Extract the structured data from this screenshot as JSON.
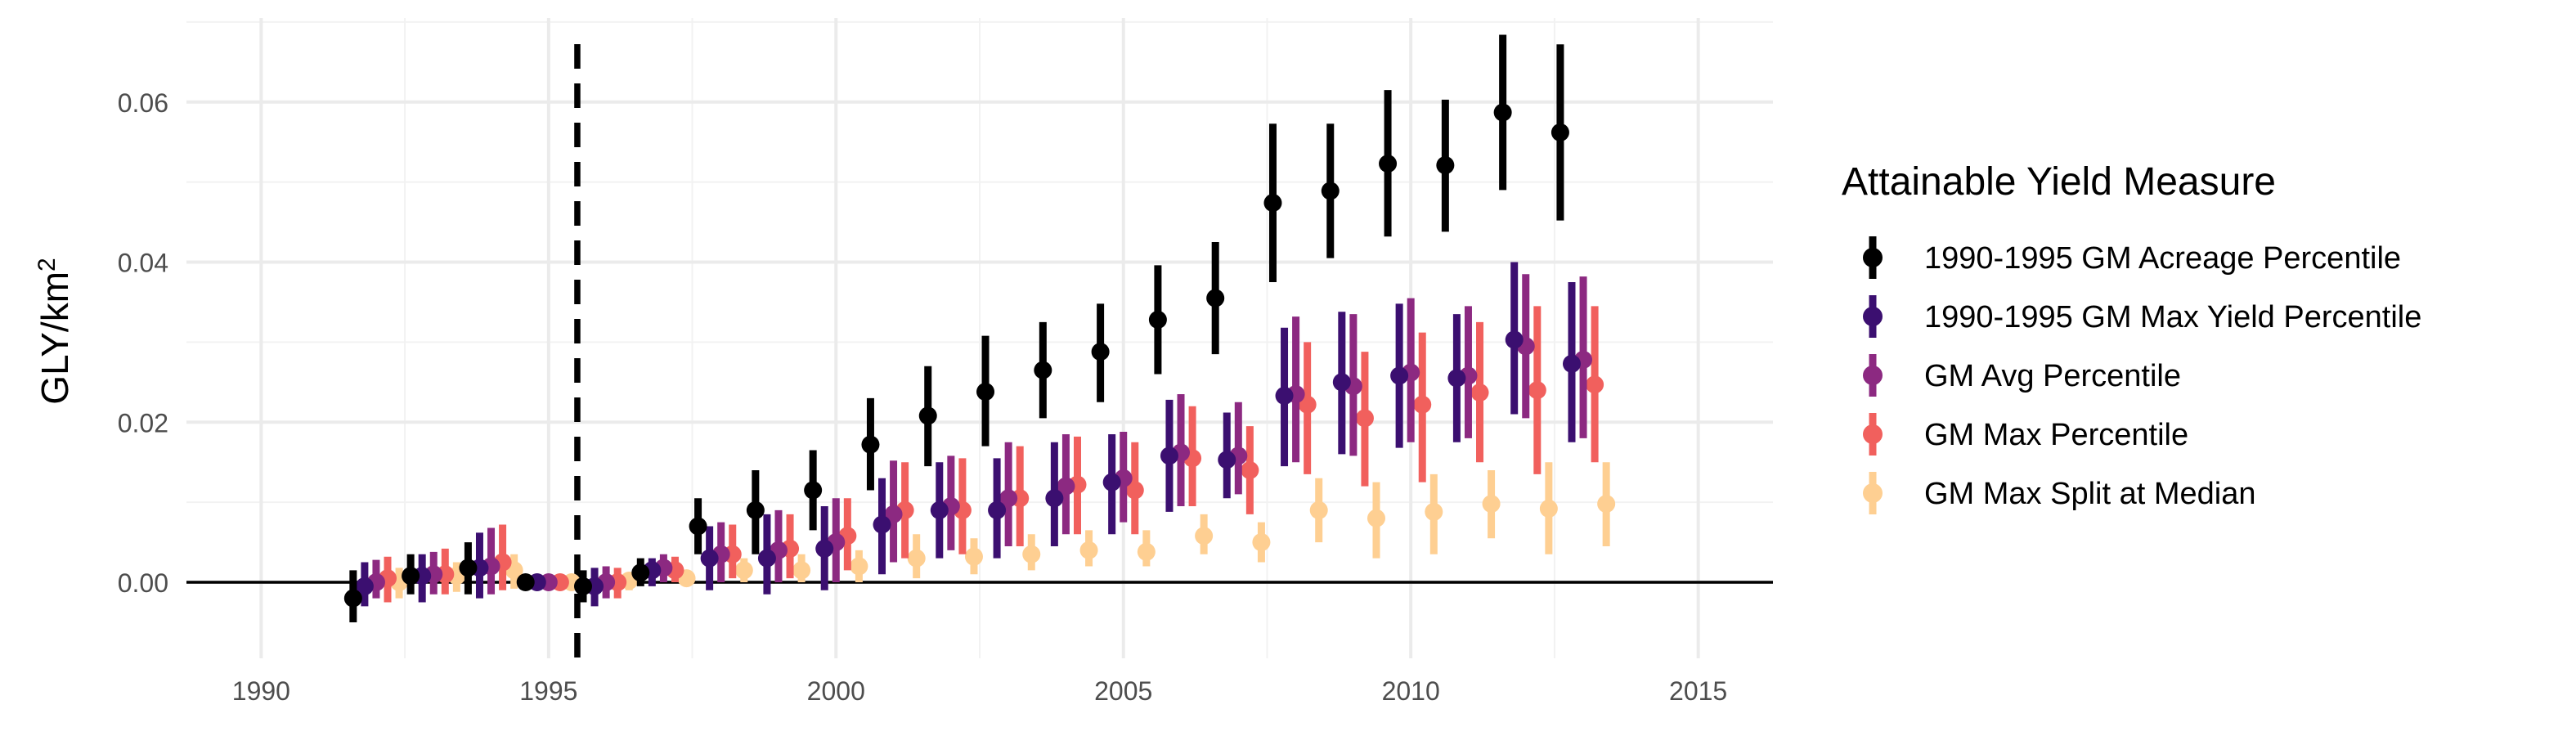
{
  "chart_data": {
    "type": "scatter",
    "subtype": "point-range (dodged by series)",
    "title": "",
    "xlabel": "",
    "ylabel": "GLY/km",
    "ylabel_superscript": "2",
    "xlim": [
      1988.7,
      2016.3
    ],
    "ylim": [
      -0.0095,
      0.0705
    ],
    "x_ticks": [
      "1990",
      "1995",
      "2000",
      "2005",
      "2010",
      "2015"
    ],
    "y_ticks": [
      "0.00",
      "0.02",
      "0.04",
      "0.06"
    ],
    "grid": true,
    "reference_lines": {
      "horizontal_y": 0,
      "vertical_dashed_x": 1995.5
    },
    "legend": {
      "title": "Attainable Yield Measure",
      "position": "right"
    },
    "series": [
      {
        "name": "1990-1995 GM Acreage Percentile",
        "color": "#000000",
        "points": [
          {
            "x": 1992,
            "y": -0.002,
            "lo": -0.005,
            "hi": 0.0015
          },
          {
            "x": 1993,
            "y": 0.0008,
            "lo": -0.0015,
            "hi": 0.0035
          },
          {
            "x": 1994,
            "y": 0.0018,
            "lo": -0.0015,
            "hi": 0.005
          },
          {
            "x": 1995,
            "y": 0.0,
            "lo": 0.0,
            "hi": 0.0
          },
          {
            "x": 1996,
            "y": -0.0005,
            "lo": -0.0025,
            "hi": 0.0015
          },
          {
            "x": 1997,
            "y": 0.0012,
            "lo": -0.0005,
            "hi": 0.003
          },
          {
            "x": 1998,
            "y": 0.007,
            "lo": 0.0035,
            "hi": 0.0105
          },
          {
            "x": 1999,
            "y": 0.009,
            "lo": 0.0035,
            "hi": 0.014
          },
          {
            "x": 2000,
            "y": 0.0115,
            "lo": 0.0065,
            "hi": 0.0165
          },
          {
            "x": 2001,
            "y": 0.0172,
            "lo": 0.0115,
            "hi": 0.023
          },
          {
            "x": 2002,
            "y": 0.0208,
            "lo": 0.0145,
            "hi": 0.027
          },
          {
            "x": 2003,
            "y": 0.0238,
            "lo": 0.017,
            "hi": 0.0308
          },
          {
            "x": 2004,
            "y": 0.0265,
            "lo": 0.0205,
            "hi": 0.0325
          },
          {
            "x": 2005,
            "y": 0.0288,
            "lo": 0.0225,
            "hi": 0.0348
          },
          {
            "x": 2006,
            "y": 0.0328,
            "lo": 0.026,
            "hi": 0.0396
          },
          {
            "x": 2007,
            "y": 0.0355,
            "lo": 0.0285,
            "hi": 0.0425
          },
          {
            "x": 2008,
            "y": 0.0474,
            "lo": 0.0375,
            "hi": 0.0573
          },
          {
            "x": 2009,
            "y": 0.0489,
            "lo": 0.0405,
            "hi": 0.0573
          },
          {
            "x": 2010,
            "y": 0.0523,
            "lo": 0.0432,
            "hi": 0.0615
          },
          {
            "x": 2011,
            "y": 0.0521,
            "lo": 0.0438,
            "hi": 0.0603
          },
          {
            "x": 2012,
            "y": 0.0587,
            "lo": 0.049,
            "hi": 0.0684
          },
          {
            "x": 2013,
            "y": 0.0562,
            "lo": 0.0452,
            "hi": 0.0672
          }
        ]
      },
      {
        "name": "1990-1995 GM Max Yield Percentile",
        "color": "#3b0f70",
        "points": [
          {
            "x": 1992,
            "y": -0.0005,
            "lo": -0.003,
            "hi": 0.0025
          },
          {
            "x": 1993,
            "y": 0.0008,
            "lo": -0.0025,
            "hi": 0.0035
          },
          {
            "x": 1994,
            "y": 0.0018,
            "lo": -0.002,
            "hi": 0.0062
          },
          {
            "x": 1995,
            "y": 0.0,
            "lo": 0.0,
            "hi": 0.0
          },
          {
            "x": 1996,
            "y": -0.0005,
            "lo": -0.003,
            "hi": 0.0018
          },
          {
            "x": 1997,
            "y": 0.0015,
            "lo": -0.0005,
            "hi": 0.003
          },
          {
            "x": 1998,
            "y": 0.003,
            "lo": -0.001,
            "hi": 0.007
          },
          {
            "x": 1999,
            "y": 0.003,
            "lo": -0.0015,
            "hi": 0.0085
          },
          {
            "x": 2000,
            "y": 0.0042,
            "lo": -0.001,
            "hi": 0.0095
          },
          {
            "x": 2001,
            "y": 0.0072,
            "lo": 0.001,
            "hi": 0.013
          },
          {
            "x": 2002,
            "y": 0.009,
            "lo": 0.003,
            "hi": 0.015
          },
          {
            "x": 2003,
            "y": 0.009,
            "lo": 0.003,
            "hi": 0.0155
          },
          {
            "x": 2004,
            "y": 0.0105,
            "lo": 0.0045,
            "hi": 0.0175
          },
          {
            "x": 2005,
            "y": 0.0125,
            "lo": 0.006,
            "hi": 0.0185
          },
          {
            "x": 2006,
            "y": 0.0158,
            "lo": 0.0088,
            "hi": 0.0228
          },
          {
            "x": 2007,
            "y": 0.0153,
            "lo": 0.0105,
            "hi": 0.0212
          },
          {
            "x": 2008,
            "y": 0.0233,
            "lo": 0.0145,
            "hi": 0.0318
          },
          {
            "x": 2009,
            "y": 0.025,
            "lo": 0.016,
            "hi": 0.0338
          },
          {
            "x": 2010,
            "y": 0.0258,
            "lo": 0.0168,
            "hi": 0.0348
          },
          {
            "x": 2011,
            "y": 0.0255,
            "lo": 0.0175,
            "hi": 0.0335
          },
          {
            "x": 2012,
            "y": 0.0303,
            "lo": 0.021,
            "hi": 0.04
          },
          {
            "x": 2013,
            "y": 0.0273,
            "lo": 0.0175,
            "hi": 0.0375
          }
        ]
      },
      {
        "name": "GM Avg Percentile",
        "color": "#8c2981",
        "points": [
          {
            "x": 1992,
            "y": 0.0,
            "lo": -0.002,
            "hi": 0.0028
          },
          {
            "x": 1993,
            "y": 0.001,
            "lo": -0.0015,
            "hi": 0.0038
          },
          {
            "x": 1994,
            "y": 0.002,
            "lo": -0.0015,
            "hi": 0.0068
          },
          {
            "x": 1995,
            "y": 0.0,
            "lo": 0.0,
            "hi": 0.0
          },
          {
            "x": 1996,
            "y": 0.0,
            "lo": -0.002,
            "hi": 0.002
          },
          {
            "x": 1997,
            "y": 0.0018,
            "lo": 0.0,
            "hi": 0.0035
          },
          {
            "x": 1998,
            "y": 0.0035,
            "lo": 0.0,
            "hi": 0.0075
          },
          {
            "x": 1999,
            "y": 0.004,
            "lo": 0.0,
            "hi": 0.009
          },
          {
            "x": 2000,
            "y": 0.005,
            "lo": 0.0,
            "hi": 0.0105
          },
          {
            "x": 2001,
            "y": 0.0085,
            "lo": 0.0025,
            "hi": 0.0152
          },
          {
            "x": 2002,
            "y": 0.0095,
            "lo": 0.004,
            "hi": 0.0158
          },
          {
            "x": 2003,
            "y": 0.0105,
            "lo": 0.0045,
            "hi": 0.0175
          },
          {
            "x": 2004,
            "y": 0.012,
            "lo": 0.006,
            "hi": 0.0185
          },
          {
            "x": 2005,
            "y": 0.013,
            "lo": 0.0075,
            "hi": 0.0188
          },
          {
            "x": 2006,
            "y": 0.0162,
            "lo": 0.0095,
            "hi": 0.0235
          },
          {
            "x": 2007,
            "y": 0.0158,
            "lo": 0.011,
            "hi": 0.0225
          },
          {
            "x": 2008,
            "y": 0.0235,
            "lo": 0.015,
            "hi": 0.0332
          },
          {
            "x": 2009,
            "y": 0.0245,
            "lo": 0.0158,
            "hi": 0.0335
          },
          {
            "x": 2010,
            "y": 0.0262,
            "lo": 0.0175,
            "hi": 0.0355
          },
          {
            "x": 2011,
            "y": 0.0258,
            "lo": 0.018,
            "hi": 0.0345
          },
          {
            "x": 2012,
            "y": 0.0295,
            "lo": 0.0205,
            "hi": 0.0385
          },
          {
            "x": 2013,
            "y": 0.0278,
            "lo": 0.018,
            "hi": 0.0382
          }
        ]
      },
      {
        "name": "GM Max Percentile",
        "color": "#f1605d",
        "points": [
          {
            "x": 1992,
            "y": 0.0005,
            "lo": -0.0025,
            "hi": 0.0032
          },
          {
            "x": 1993,
            "y": 0.001,
            "lo": -0.0015,
            "hi": 0.0042
          },
          {
            "x": 1994,
            "y": 0.0025,
            "lo": -0.001,
            "hi": 0.0072
          },
          {
            "x": 1995,
            "y": 0.0,
            "lo": 0.0,
            "hi": 0.0
          },
          {
            "x": 1996,
            "y": 0.0,
            "lo": -0.002,
            "hi": 0.0018
          },
          {
            "x": 1997,
            "y": 0.0015,
            "lo": 0.0,
            "hi": 0.0032
          },
          {
            "x": 1998,
            "y": 0.0035,
            "lo": 0.0005,
            "hi": 0.0072
          },
          {
            "x": 1999,
            "y": 0.0042,
            "lo": 0.0005,
            "hi": 0.0085
          },
          {
            "x": 2000,
            "y": 0.0058,
            "lo": 0.0015,
            "hi": 0.0105
          },
          {
            "x": 2001,
            "y": 0.009,
            "lo": 0.003,
            "hi": 0.015
          },
          {
            "x": 2002,
            "y": 0.009,
            "lo": 0.0035,
            "hi": 0.0155
          },
          {
            "x": 2003,
            "y": 0.0105,
            "lo": 0.0045,
            "hi": 0.017
          },
          {
            "x": 2004,
            "y": 0.0122,
            "lo": 0.006,
            "hi": 0.0182
          },
          {
            "x": 2005,
            "y": 0.0115,
            "lo": 0.006,
            "hi": 0.0175
          },
          {
            "x": 2006,
            "y": 0.0155,
            "lo": 0.0095,
            "hi": 0.022
          },
          {
            "x": 2007,
            "y": 0.014,
            "lo": 0.0085,
            "hi": 0.0195
          },
          {
            "x": 2008,
            "y": 0.0222,
            "lo": 0.0135,
            "hi": 0.03
          },
          {
            "x": 2009,
            "y": 0.0205,
            "lo": 0.012,
            "hi": 0.0288
          },
          {
            "x": 2010,
            "y": 0.0222,
            "lo": 0.0125,
            "hi": 0.0312
          },
          {
            "x": 2011,
            "y": 0.0237,
            "lo": 0.015,
            "hi": 0.0325
          },
          {
            "x": 2012,
            "y": 0.024,
            "lo": 0.0135,
            "hi": 0.0345
          },
          {
            "x": 2013,
            "y": 0.0247,
            "lo": 0.015,
            "hi": 0.0345
          }
        ]
      },
      {
        "name": "GM Max Split at Median",
        "color": "#fecf92",
        "points": [
          {
            "x": 1992,
            "y": 0.0,
            "lo": -0.002,
            "hi": 0.0018
          },
          {
            "x": 1993,
            "y": 0.0008,
            "lo": -0.0012,
            "hi": 0.0025
          },
          {
            "x": 1994,
            "y": 0.0015,
            "lo": -0.0008,
            "hi": 0.0035
          },
          {
            "x": 1995,
            "y": 0.0,
            "lo": 0.0,
            "hi": 0.0
          },
          {
            "x": 1996,
            "y": 0.0002,
            "lo": -0.001,
            "hi": 0.0012
          },
          {
            "x": 1997,
            "y": 0.0005,
            "lo": -0.0005,
            "hi": 0.0015
          },
          {
            "x": 1998,
            "y": 0.0015,
            "lo": 0.0,
            "hi": 0.003
          },
          {
            "x": 1999,
            "y": 0.0015,
            "lo": 0.0,
            "hi": 0.0035
          },
          {
            "x": 2000,
            "y": 0.002,
            "lo": 0.0,
            "hi": 0.004
          },
          {
            "x": 2001,
            "y": 0.003,
            "lo": 0.0005,
            "hi": 0.006
          },
          {
            "x": 2002,
            "y": 0.0032,
            "lo": 0.001,
            "hi": 0.0055
          },
          {
            "x": 2003,
            "y": 0.0035,
            "lo": 0.0015,
            "hi": 0.006
          },
          {
            "x": 2004,
            "y": 0.004,
            "lo": 0.002,
            "hi": 0.0065
          },
          {
            "x": 2005,
            "y": 0.0038,
            "lo": 0.002,
            "hi": 0.0065
          },
          {
            "x": 2006,
            "y": 0.0058,
            "lo": 0.0035,
            "hi": 0.0085
          },
          {
            "x": 2007,
            "y": 0.005,
            "lo": 0.0025,
            "hi": 0.0075
          },
          {
            "x": 2008,
            "y": 0.009,
            "lo": 0.005,
            "hi": 0.013
          },
          {
            "x": 2009,
            "y": 0.008,
            "lo": 0.003,
            "hi": 0.0125
          },
          {
            "x": 2010,
            "y": 0.0088,
            "lo": 0.0035,
            "hi": 0.0135
          },
          {
            "x": 2011,
            "y": 0.0098,
            "lo": 0.0055,
            "hi": 0.014
          },
          {
            "x": 2012,
            "y": 0.0092,
            "lo": 0.0035,
            "hi": 0.015
          },
          {
            "x": 2013,
            "y": 0.0098,
            "lo": 0.0045,
            "hi": 0.015
          }
        ]
      }
    ]
  }
}
